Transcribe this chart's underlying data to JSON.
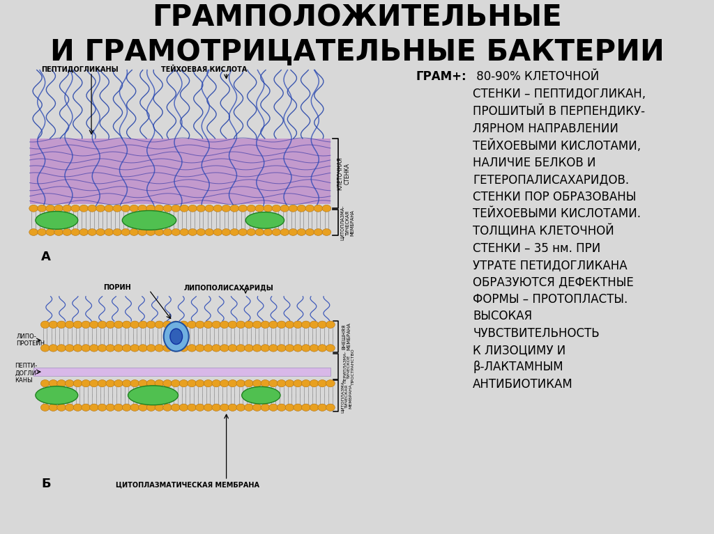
{
  "title_line1": "ГРАМПОЛОЖИТЕЛЬНЫЕ",
  "title_line2": "И ГРАМОТРИЦАТЕЛЬНЫЕ БАКТЕРИИ",
  "bg_color": "#d8d8d8",
  "panel_bg": "#ffffff",
  "title_color": "#000000",
  "label_A": "А",
  "label_B": "Б",
  "right_text_bold": "ГРАМ+:",
  "right_text_body": " 80-90% КЛЕТОЧНОЙ\nСТЕНКИ – ПЕПТИДОГЛИКАН,\nПРОШИТЫЙ В ПЕРПЕНДИКУ-\nЛЯРНОМ НАПРАВЛЕНИИ\nТЕЙХОЕВЫМИ КИСЛОТАМИ,\nНАЛИЧИЕ БЕЛКОВ И\nГЕТЕРОПАЛИСАХАРИДОВ.\nСТЕНКИ ПОР ОБРАЗОВАНЫ\nТЕЙХОЕВЫМИ КИСЛОТАМИ.\nТОЛЩИНА КЛЕТОЧНОЙ\nСТЕНКИ – 35 нм. ПРИ\nУТРАТЕ ПЕТИДОГЛИКАНА\nОБРАЗУЮТСЯ ДЕФЕКТНЫЕ\nФОРМЫ – ПРОТОПЛАСТЫ.\nВЫСОКАЯ\nЧУВСТВИТЕЛЬНОСТЬ\nК ЛИЗОЦИМУ И\nβ-ЛАКТАМНЫМ\nАНТИБИОТИКАМ",
  "purple_color": "#c090cc",
  "orange_bead_color": "#e8a020",
  "green_protein_color": "#50c050",
  "blue_color": "#3050b0",
  "light_purple": "#d8b8e8",
  "gray_tail": "#a0a0a0"
}
